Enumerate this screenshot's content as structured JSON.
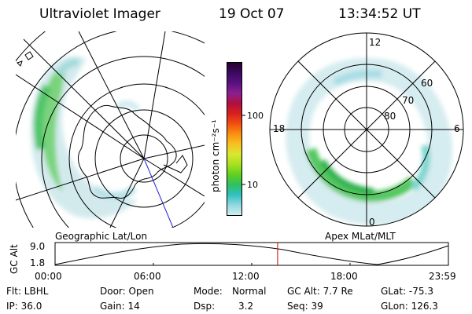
{
  "header": {
    "instrument": "Ultraviolet Imager",
    "date": "19 Oct 07",
    "time": "13:34:52 UT"
  },
  "colorbar": {
    "label": "photon cm⁻²s⁻¹",
    "ticks": [
      "100",
      "10"
    ],
    "colors": [
      "#2a0030",
      "#3a0a60",
      "#5a1080",
      "#8a2090",
      "#b01040",
      "#d82020",
      "#f05010",
      "#f89010",
      "#f8c020",
      "#d8e830",
      "#a8e020",
      "#60d020",
      "#30c060",
      "#30c0c0",
      "#90d8e0",
      "#d0eef0"
    ]
  },
  "left_map": {
    "label": "Geographic Lat/Lon"
  },
  "right_map": {
    "label": "Apex MLat/MLT",
    "mlt_labels": {
      "top": "12",
      "left": "18",
      "right": "6",
      "bottom": "0"
    },
    "lat_labels": [
      "60",
      "70",
      "80"
    ]
  },
  "altitude_plot": {
    "ylabel": "GC Alt",
    "yticks": [
      "9.0",
      "1.8"
    ],
    "xticks": [
      "00:00",
      "06:00",
      "12:00",
      "18:00",
      "23:59"
    ],
    "current_time_hours": 13.58,
    "marker_color": "#d00000"
  },
  "footer": {
    "flt": "Flt: LBHL",
    "ip": "IP: 36.0",
    "door": "Door: Open",
    "gain": "Gain: 14",
    "mode_label": "Mode:",
    "mode_value": "Normal",
    "dsp_label": "Dsp:",
    "dsp_value": "3.2",
    "gc_alt": "GC Alt: 7.7 Re",
    "seq": "Seq: 39",
    "glat": "GLat: -75.3",
    "glon": "GLon: 126.3"
  }
}
